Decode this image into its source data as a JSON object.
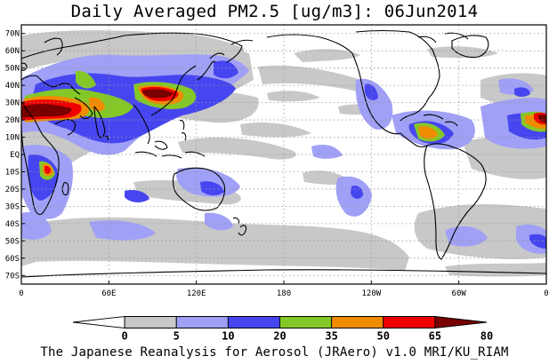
{
  "title": "Daily Averaged PM2.5 [ug/m3]: 06Jun2014",
  "footer": "The Japanese Reanalysis for Aerosol (JRAero) v1.0 MRI/KU_RIAM",
  "map": {
    "lon_range": [
      0,
      360
    ],
    "lat_range": [
      -75,
      75
    ],
    "lat_labels": [
      {
        "lat": 70,
        "label": "70N"
      },
      {
        "lat": 60,
        "label": "60N"
      },
      {
        "lat": 50,
        "label": "50N"
      },
      {
        "lat": 40,
        "label": "40N"
      },
      {
        "lat": 30,
        "label": "30N"
      },
      {
        "lat": 20,
        "label": "20N"
      },
      {
        "lat": 10,
        "label": "10N"
      },
      {
        "lat": 0,
        "label": "EQ"
      },
      {
        "lat": -10,
        "label": "10S"
      },
      {
        "lat": -20,
        "label": "20S"
      },
      {
        "lat": -30,
        "label": "30S"
      },
      {
        "lat": -40,
        "label": "40S"
      },
      {
        "lat": -50,
        "label": "50S"
      },
      {
        "lat": -60,
        "label": "60S"
      },
      {
        "lat": -70,
        "label": "70S"
      }
    ],
    "lon_labels": [
      {
        "lon": 0,
        "label": "0"
      },
      {
        "lon": 60,
        "label": "60E"
      },
      {
        "lon": 120,
        "label": "120E"
      },
      {
        "lon": 180,
        "label": "180"
      },
      {
        "lon": 240,
        "label": "120W"
      },
      {
        "lon": 300,
        "label": "60W"
      },
      {
        "lon": 360,
        "label": "0"
      }
    ]
  },
  "colorbar": {
    "levels": [
      0,
      5,
      10,
      20,
      35,
      50,
      65,
      80
    ],
    "labels": [
      "0",
      "5",
      "10",
      "20",
      "35",
      "50",
      "65",
      "80"
    ],
    "colors": [
      "#ffffff",
      "#c8c8c8",
      "#a0a0f6",
      "#4646f0",
      "#84c828",
      "#f08c00",
      "#f00000",
      "#780000"
    ]
  },
  "colors": {
    "c5": "#c8c8c8",
    "c10": "#a0a0f6",
    "c20": "#4646f0",
    "c35": "#84c828",
    "c50": "#f08c00",
    "c65": "#f00000",
    "c80": "#780000",
    "coast": "#000000",
    "grid": "#969696"
  }
}
